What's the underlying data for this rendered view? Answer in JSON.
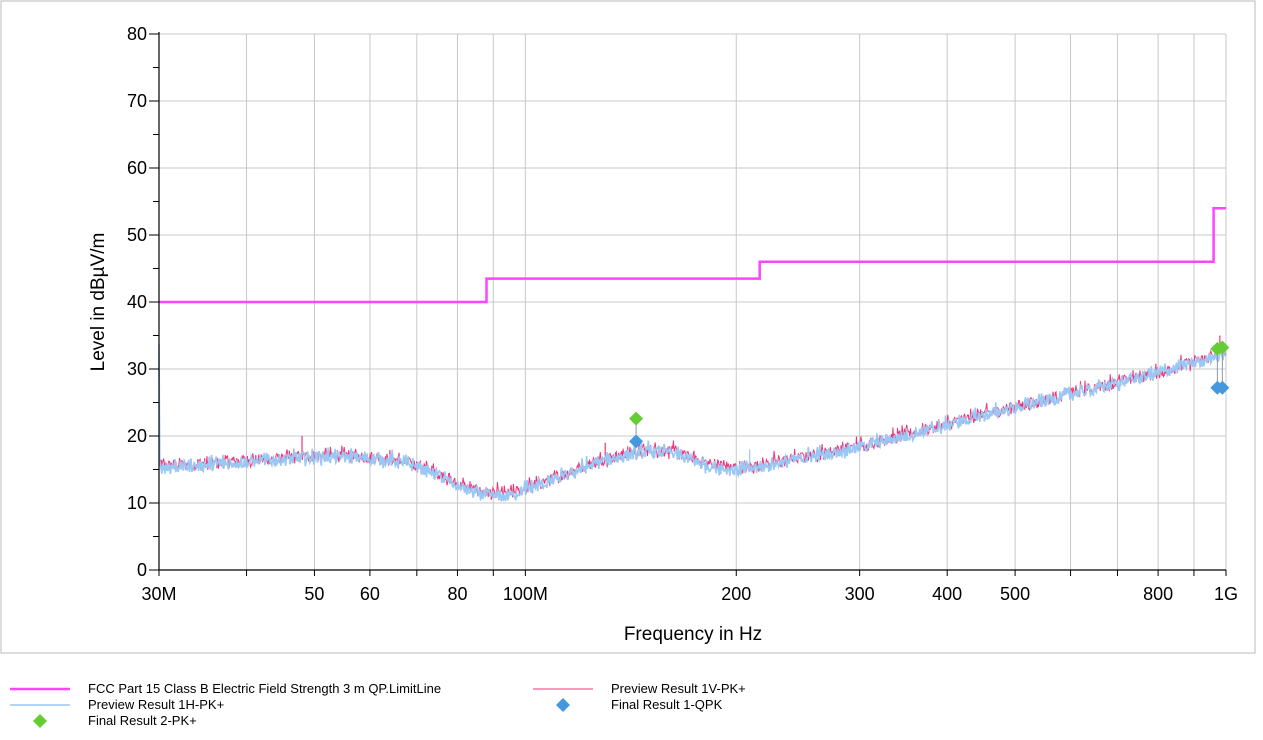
{
  "chart_data": {
    "type": "line",
    "xlabel": "Frequency in Hz",
    "ylabel": "Level in dBµV/m",
    "x_scale": "log",
    "xlim": [
      30,
      1000
    ],
    "ylim": [
      0,
      80
    ],
    "grid": true,
    "x_ticks": [
      {
        "value": 30,
        "label": "30M"
      },
      {
        "value": 50,
        "label": "50"
      },
      {
        "value": 60,
        "label": "60"
      },
      {
        "value": 80,
        "label": "80"
      },
      {
        "value": 100,
        "label": "100M"
      },
      {
        "value": 200,
        "label": "200"
      },
      {
        "value": 300,
        "label": "300"
      },
      {
        "value": 400,
        "label": "400"
      },
      {
        "value": 500,
        "label": "500"
      },
      {
        "value": 800,
        "label": "800"
      },
      {
        "value": 1000,
        "label": "1G"
      }
    ],
    "x_grid": [
      40,
      50,
      60,
      70,
      80,
      90,
      100,
      200,
      300,
      400,
      500,
      600,
      700,
      800,
      900
    ],
    "y_ticks": [
      0,
      10,
      20,
      30,
      40,
      50,
      60,
      70,
      80
    ],
    "series": [
      {
        "name": "FCC Part 15 Class B Electric Field Strength 3 m QP.LimitLine",
        "kind": "step",
        "color": "#ff44ff",
        "x": [
          30,
          88,
          88,
          216,
          216,
          960,
          960,
          1000
        ],
        "y": [
          40,
          40,
          43.5,
          43.5,
          46,
          46,
          54,
          54
        ]
      },
      {
        "name": "Preview Result 1V-PK+",
        "kind": "line",
        "color": "#ee3377",
        "x": [
          30,
          35,
          40,
          45,
          50,
          55,
          60,
          65,
          70,
          75,
          80,
          85,
          90,
          95,
          100,
          110,
          120,
          130,
          140,
          150,
          160,
          170,
          180,
          200,
          210,
          220,
          250,
          300,
          350,
          400,
          450,
          500,
          600,
          700,
          800,
          900,
          1000
        ],
        "y": [
          15.5,
          15.8,
          16.3,
          16.6,
          17,
          17,
          16.8,
          16.4,
          15.6,
          14.4,
          12.8,
          11.8,
          11.3,
          11.3,
          12.2,
          13.6,
          15.3,
          16.6,
          17.3,
          17.9,
          17.8,
          16.9,
          16.0,
          15.2,
          15.3,
          15.8,
          16.8,
          18.5,
          20.2,
          21.7,
          23.2,
          24.3,
          26.3,
          28.0,
          29.4,
          31.0,
          32.4
        ],
        "spikes": [
          {
            "x": 48,
            "y": 20
          },
          {
            "x": 130,
            "y": 19
          },
          {
            "x": 980,
            "y": 35
          }
        ]
      },
      {
        "name": "Preview Result 1H-PK+",
        "kind": "line",
        "color": "#99c8f5",
        "x": [
          30,
          35,
          40,
          45,
          50,
          55,
          60,
          65,
          70,
          75,
          80,
          85,
          90,
          95,
          100,
          110,
          120,
          130,
          140,
          150,
          160,
          170,
          180,
          200,
          210,
          220,
          250,
          300,
          350,
          400,
          450,
          500,
          600,
          700,
          800,
          900,
          1000
        ],
        "y": [
          15.2,
          15.6,
          16.1,
          16.4,
          16.8,
          16.8,
          16.6,
          16.2,
          15.4,
          14.1,
          12.4,
          11.4,
          10.9,
          11.0,
          11.9,
          13.3,
          15.0,
          16.3,
          17.1,
          17.6,
          17.5,
          16.6,
          15.6,
          14.8,
          15.0,
          15.5,
          16.6,
          18.3,
          20.0,
          21.5,
          23.0,
          24.1,
          26.1,
          27.8,
          29.3,
          30.9,
          32.2
        ],
        "spikes": [
          {
            "x": 209,
            "y": 18
          }
        ]
      },
      {
        "name": "Final Result 1-QPK",
        "kind": "marker",
        "color": "#4499dd",
        "x": [
          143.9,
          972,
          988
        ],
        "y": [
          19.2,
          27.2,
          27.2
        ]
      },
      {
        "name": "Final Result 2-PK+",
        "kind": "marker",
        "color": "#66cc33",
        "x": [
          143.9,
          972,
          988
        ],
        "y": [
          22.6,
          33.0,
          33.2
        ]
      }
    ]
  },
  "legend": {
    "limit": "FCC Part 15 Class B Electric Field Strength 3 m QP.LimitLine",
    "pv": "Preview Result 1V-PK+",
    "ph": "Preview Result 1H-PK+",
    "fr1": "Final Result 1-QPK",
    "fr2": "Final Result 2-PK+"
  }
}
